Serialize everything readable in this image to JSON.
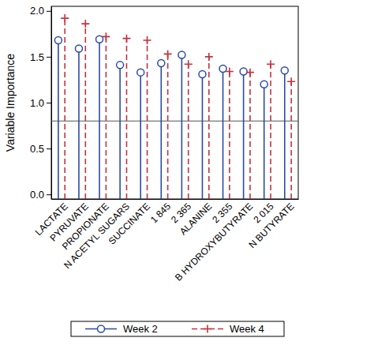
{
  "chart_data": {
    "type": "needle",
    "y_label": "Variable Importance",
    "categories": [
      "LACTATE",
      "PYRUVATE",
      "PROPIONATE",
      "N ACETYL SUGARS",
      "SUCCINATE",
      "1 845",
      "2 365",
      "ALANINE",
      "2 355",
      "B HYDROXYBUTYRATE",
      "2 015",
      "N BUTYRATE"
    ],
    "series": [
      {
        "name": "Week 2",
        "color": "#2a4aa8",
        "marker": "circle",
        "line_style": "solid",
        "values": [
          1.68,
          1.59,
          1.69,
          1.41,
          1.33,
          1.43,
          1.52,
          1.31,
          1.37,
          1.34,
          1.2,
          1.35
        ]
      },
      {
        "name": "Week 4",
        "color": "#c8303c",
        "marker": "plus",
        "line_style": "dashed",
        "values": [
          1.92,
          1.86,
          1.72,
          1.7,
          1.68,
          1.53,
          1.42,
          1.5,
          1.34,
          1.33,
          1.42,
          1.23
        ]
      }
    ],
    "reference_line": 0.8,
    "ylim": [
      -0.05,
      2.05
    ],
    "yticks": [
      {
        "value": 0,
        "label": "0.0"
      },
      {
        "value": 0.5,
        "label": "0.5"
      },
      {
        "value": 1,
        "label": "1.0"
      },
      {
        "value": 1.5,
        "label": "1.5"
      },
      {
        "value": 2,
        "label": "2.0"
      }
    ],
    "legend": "bottom"
  }
}
